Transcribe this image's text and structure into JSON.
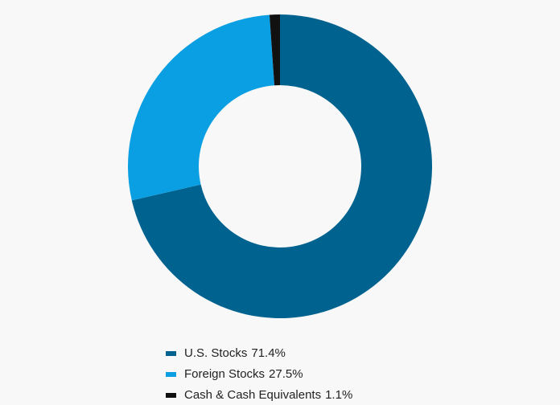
{
  "chart_data": {
    "type": "donut",
    "categories": [
      "U.S. Stocks",
      "Foreign Stocks",
      "Cash & Cash Equivalents"
    ],
    "values": [
      71.4,
      27.5,
      1.1
    ],
    "value_labels": [
      "71.4%",
      "27.5%",
      "1.1%"
    ],
    "colors": [
      "#00628f",
      "#0a9fe2",
      "#111111"
    ]
  }
}
